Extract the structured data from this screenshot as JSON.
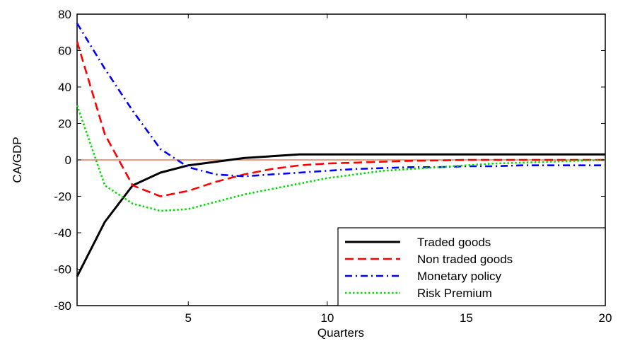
{
  "chart_data": {
    "type": "line",
    "title": "",
    "xlabel": "Quarters",
    "ylabel": "CA/GDP",
    "xlim": [
      1,
      20
    ],
    "ylim": [
      -80,
      80
    ],
    "xticks": [
      5,
      10,
      15,
      20
    ],
    "yticks": [
      -80,
      -60,
      -40,
      -20,
      0,
      20,
      40,
      60,
      80
    ],
    "grid": false,
    "legend_position": "bottom-right",
    "zero_line": {
      "y": 0,
      "color": "#e06030"
    },
    "series": [
      {
        "name": "Traded goods",
        "color": "#000000",
        "dash": "solid",
        "x": [
          1,
          2,
          3,
          4,
          5,
          6,
          7,
          8,
          9,
          10,
          11,
          12,
          13,
          14,
          15,
          16,
          17,
          18,
          19,
          20
        ],
        "y": [
          -64,
          -34,
          -14,
          -7,
          -3,
          -1,
          1,
          2,
          3,
          3,
          3,
          3,
          3,
          3,
          3,
          3,
          3,
          3,
          3,
          3
        ]
      },
      {
        "name": "Non traded goods",
        "color": "#ff0000",
        "dash": "dashed",
        "x": [
          1,
          2,
          3,
          4,
          5,
          6,
          7,
          8,
          9,
          10,
          11,
          12,
          13,
          14,
          15,
          16,
          17,
          18,
          19,
          20
        ],
        "y": [
          65,
          14,
          -14,
          -20,
          -17,
          -12,
          -8,
          -5,
          -3,
          -2,
          -1.5,
          -1,
          -0.5,
          -0.3,
          0,
          0,
          0,
          0,
          0,
          0
        ]
      },
      {
        "name": "Monetary policy",
        "color": "#0000ff",
        "dash": "dashdot",
        "x": [
          1,
          2,
          3,
          4,
          5,
          6,
          7,
          8,
          9,
          10,
          11,
          12,
          13,
          14,
          15,
          16,
          17,
          18,
          19,
          20
        ],
        "y": [
          75,
          50,
          27,
          6,
          -4,
          -8,
          -9,
          -8,
          -7,
          -6,
          -5,
          -4.5,
          -4,
          -4,
          -3.5,
          -3.5,
          -3,
          -3,
          -3,
          -3
        ]
      },
      {
        "name": "Risk Premium",
        "color": "#00dd00",
        "dash": "dotted",
        "x": [
          1,
          2,
          3,
          4,
          5,
          6,
          7,
          8,
          9,
          10,
          11,
          12,
          13,
          14,
          15,
          16,
          17,
          18,
          19,
          20
        ],
        "y": [
          30,
          -14,
          -24,
          -28,
          -27,
          -23,
          -19,
          -16,
          -13,
          -10,
          -8,
          -6,
          -5,
          -4,
          -3,
          -2,
          -1.5,
          -1,
          -0.5,
          0
        ]
      }
    ]
  }
}
